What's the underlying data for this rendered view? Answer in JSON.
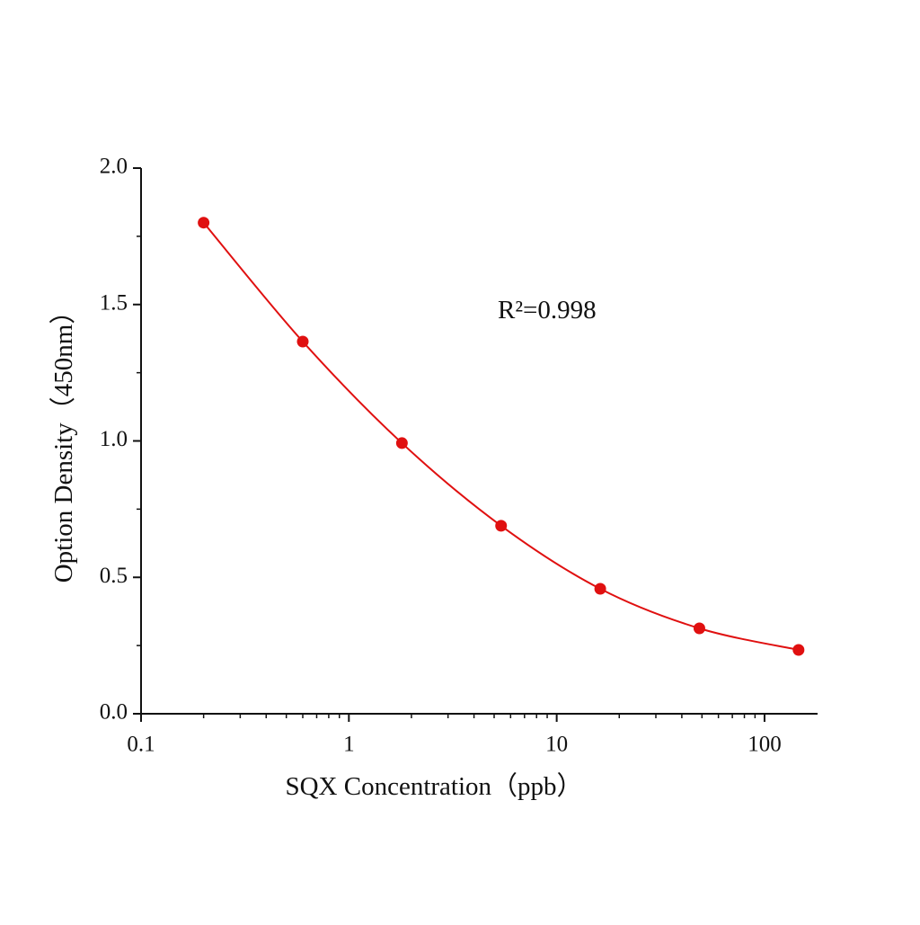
{
  "chart_data": {
    "type": "line",
    "xlabel": "SQX Concentration（ppb）",
    "ylabel": "Option Density（450nm）",
    "annotation": "R²=0.998",
    "xscale": "log",
    "x": [
      0.2,
      0.6,
      1.8,
      5.4,
      16.2,
      48.6,
      145.8
    ],
    "series": [
      {
        "color": "#e01010",
        "values": [
          1.8,
          1.364,
          0.992,
          0.689,
          0.458,
          0.313,
          0.234
        ]
      }
    ],
    "xlim": [
      0.1,
      180
    ],
    "xticks": [
      0.1,
      1,
      10,
      100
    ],
    "ylim": [
      0,
      2
    ],
    "yticks": [
      {
        "value": 0,
        "label": "0.0"
      },
      {
        "value": 0.5,
        "label": "0.5"
      },
      {
        "value": 1,
        "label": "1.0"
      },
      {
        "value": 1.5,
        "label": "1.5"
      },
      {
        "value": 2,
        "label": "2.0"
      }
    ],
    "smooth": true
  }
}
